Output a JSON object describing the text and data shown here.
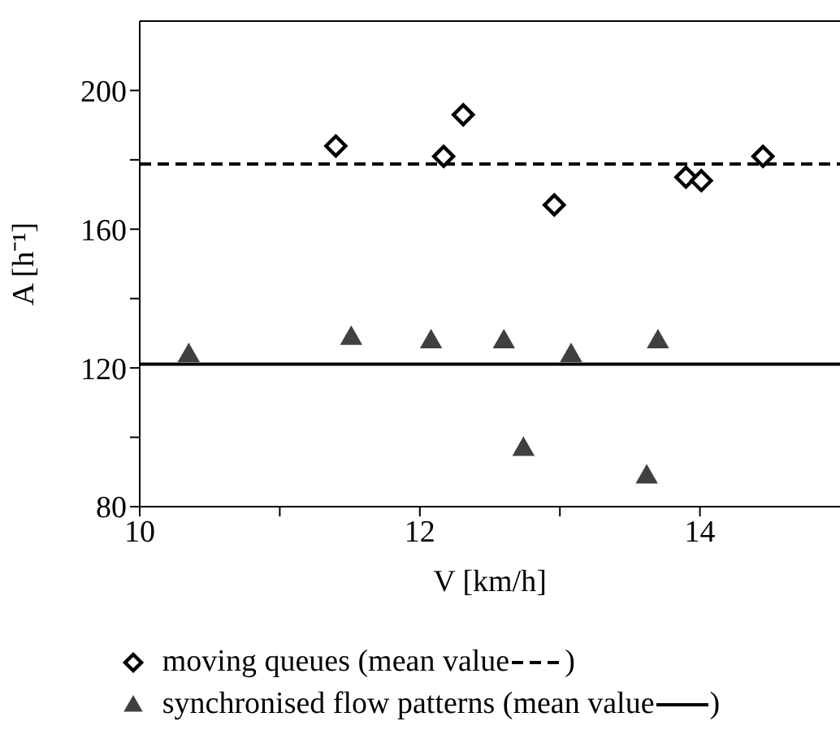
{
  "chart_data": {
    "type": "scatter",
    "xlabel": "V [km/h]",
    "ylabel": "A [h⁻¹]",
    "xlim": [
      10,
      15
    ],
    "ylim": [
      80,
      220
    ],
    "xticks": [
      10,
      {
        "value": 11,
        "label": null
      },
      12,
      {
        "value": 13,
        "label": null
      },
      14
    ],
    "yticks": [
      80,
      {
        "value": 100,
        "label": null
      },
      120,
      {
        "value": 140,
        "label": null
      },
      160,
      {
        "value": 180,
        "label": null
      },
      200
    ],
    "grid": false,
    "legend": "bottom",
    "series": [
      {
        "name": "moving queues (mean value",
        "color": "#000000",
        "marker": "diamond",
        "x": [
          11.4,
          12.17,
          12.31,
          12.96,
          13.9,
          14.01,
          14.45
        ],
        "values": [
          184,
          181,
          193,
          167,
          175,
          174,
          181
        ]
      },
      {
        "name": "synchronised flow patterns (mean value",
        "color": "#404040",
        "marker": "triangle",
        "x": [
          10.35,
          11.51,
          12.08,
          12.6,
          12.74,
          13.08,
          13.62,
          13.7
        ],
        "values": [
          124,
          129,
          128,
          128,
          97,
          124,
          89,
          128
        ]
      }
    ],
    "ref_lines": [
      {
        "axis": "y",
        "value": 178.8,
        "color": "#000000",
        "line_style": "dashed"
      },
      {
        "axis": "y",
        "value": 121.1,
        "color": "#000000",
        "line_style": "solid"
      }
    ],
    "annotations": [
      ")",
      ")"
    ]
  }
}
